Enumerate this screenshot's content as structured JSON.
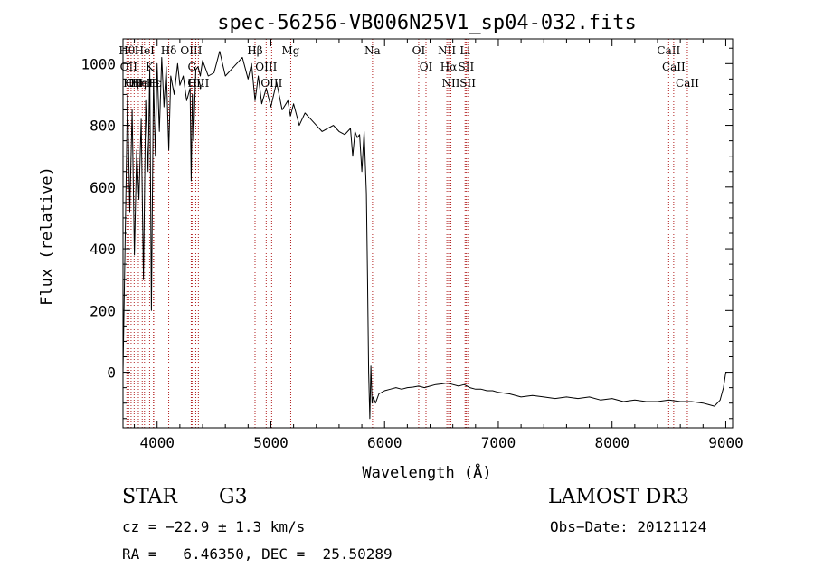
{
  "chart_data": {
    "type": "line",
    "title": "spec-56256-VB006N25V1_sp04-032.fits",
    "xlabel": "Wavelength (Å)",
    "ylabel": "Flux (relative)",
    "xlim": [
      3700,
      9060
    ],
    "ylim": [
      -180,
      1080
    ],
    "xticks": [
      4000,
      5000,
      6000,
      7000,
      8000,
      9000
    ],
    "yticks": [
      0,
      200,
      400,
      600,
      800,
      1000
    ],
    "grid": false,
    "legend": "none",
    "series": [
      {
        "name": "flux",
        "x": [
          3700,
          3720,
          3740,
          3760,
          3780,
          3800,
          3820,
          3840,
          3860,
          3880,
          3900,
          3920,
          3935,
          3950,
          3968,
          3985,
          4000,
          4020,
          4040,
          4060,
          4080,
          4102,
          4120,
          4150,
          4180,
          4200,
          4230,
          4260,
          4290,
          4300,
          4310,
          4320,
          4340,
          4360,
          4380,
          4400,
          4450,
          4500,
          4550,
          4600,
          4650,
          4700,
          4750,
          4800,
          4830,
          4861,
          4890,
          4920,
          4960,
          5000,
          5050,
          5100,
          5150,
          5172,
          5200,
          5250,
          5300,
          5350,
          5400,
          5450,
          5500,
          5550,
          5600,
          5650,
          5700,
          5720,
          5740,
          5760,
          5780,
          5800,
          5820,
          5840,
          5850,
          5860,
          5870,
          5880,
          5890,
          5900,
          5920,
          5950,
          6000,
          6050,
          6100,
          6150,
          6200,
          6250,
          6300,
          6350,
          6400,
          6450,
          6500,
          6550,
          6600,
          6650,
          6700,
          6750,
          6800,
          6850,
          6900,
          6950,
          7000,
          7100,
          7200,
          7300,
          7400,
          7500,
          7600,
          7700,
          7800,
          7900,
          8000,
          8100,
          8200,
          8300,
          8400,
          8500,
          8600,
          8700,
          8800,
          8850,
          8900,
          8950,
          8980,
          9000,
          9010
        ],
        "values": [
          0,
          450,
          900,
          520,
          850,
          380,
          720,
          560,
          820,
          300,
          880,
          650,
          980,
          200,
          950,
          700,
          1000,
          780,
          1020,
          860,
          990,
          720,
          960,
          900,
          1000,
          930,
          960,
          880,
          920,
          620,
          900,
          750,
          980,
          990,
          960,
          1010,
          960,
          970,
          1040,
          960,
          980,
          1000,
          1020,
          950,
          1000,
          880,
          960,
          870,
          920,
          860,
          940,
          850,
          880,
          830,
          870,
          800,
          840,
          820,
          800,
          780,
          790,
          800,
          780,
          770,
          790,
          700,
          780,
          760,
          770,
          650,
          780,
          580,
          300,
          0,
          -150,
          20,
          -100,
          -80,
          -100,
          -70,
          -60,
          -55,
          -50,
          -55,
          -50,
          -48,
          -45,
          -50,
          -45,
          -40,
          -38,
          -35,
          -40,
          -45,
          -40,
          -50,
          -55,
          -55,
          -60,
          -60,
          -65,
          -70,
          -80,
          -75,
          -80,
          -85,
          -80,
          -85,
          -80,
          -90,
          -85,
          -95,
          -90,
          -95,
          -95,
          -90,
          -95,
          -95,
          -100,
          -105,
          -110,
          -90,
          -50,
          0,
          0
        ]
      }
    ],
    "lines": [
      {
        "wave": 3734,
        "label": "Hθ"
      },
      {
        "wave": 3750,
        "label": "OII"
      },
      {
        "wave": 3771,
        "label": "Hη"
      },
      {
        "wave": 3798,
        "label": "OII"
      },
      {
        "wave": 3835,
        "label": "Hη"
      },
      {
        "wave": 3869,
        "label": "HeI"
      },
      {
        "wave": 3889,
        "label": "HeI"
      },
      {
        "wave": 3934,
        "label": "K"
      },
      {
        "wave": 3968,
        "label": "H"
      },
      {
        "wave": 3970,
        "label": "Hε"
      },
      {
        "wave": 4102,
        "label": "Hδ"
      },
      {
        "wave": 4300,
        "label": "OIII"
      },
      {
        "wave": 4307,
        "label": "G"
      },
      {
        "wave": 4340,
        "label": "Hγ"
      },
      {
        "wave": 4363,
        "label": "OIII"
      },
      {
        "wave": 4861,
        "label": "Hβ"
      },
      {
        "wave": 4959,
        "label": "OIII"
      },
      {
        "wave": 5007,
        "label": "OIII"
      },
      {
        "wave": 5175,
        "label": "Mg"
      },
      {
        "wave": 5894,
        "label": "Na"
      },
      {
        "wave": 6300,
        "label": "OI"
      },
      {
        "wave": 6364,
        "label": "OI"
      },
      {
        "wave": 6548,
        "label": "NII"
      },
      {
        "wave": 6563,
        "label": "Hα"
      },
      {
        "wave": 6583,
        "label": "NII"
      },
      {
        "wave": 6708,
        "label": "Li"
      },
      {
        "wave": 6717,
        "label": "SII"
      },
      {
        "wave": 6731,
        "label": "SII"
      },
      {
        "wave": 8498,
        "label": "CaII"
      },
      {
        "wave": 8542,
        "label": "CaII"
      },
      {
        "wave": 8662,
        "label": "CaII"
      }
    ]
  },
  "info": {
    "object_class": "STAR",
    "subclass": "G3",
    "survey": "LAMOST DR3",
    "cz": "cz = −22.9 ± 1.3 km/s",
    "obs_date": "Obs−Date: 20121124",
    "radec": "RA =   6.46350, DEC =  25.50289"
  },
  "colors": {
    "spectrum": "#000000",
    "line_markers": "#b22222"
  }
}
